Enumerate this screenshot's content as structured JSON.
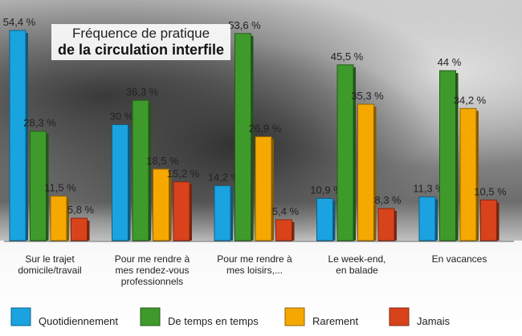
{
  "chart_data": {
    "type": "bar",
    "title_line1": "Fréquence de pratique",
    "title_line2": "de la circulation interfile",
    "categories": [
      [
        "Sur le trajet",
        "domicile/travail"
      ],
      [
        "Pour me rendre à",
        "mes rendez-vous",
        "professionnels"
      ],
      [
        "Pour me rendre à",
        "mes loisirs,..."
      ],
      [
        "Le week-end,",
        "en balade"
      ],
      [
        "En vacances"
      ]
    ],
    "series": [
      {
        "name": "Quotidiennement",
        "color": "#1aa3e0",
        "values": [
          54.4,
          30,
          14.2,
          10.9,
          11.3
        ],
        "labels": [
          "54,4 %",
          "30 %",
          "14,2 %",
          "10,9 %",
          "11,3 %"
        ]
      },
      {
        "name": "De temps en temps",
        "color": "#3f9a2c",
        "values": [
          28.3,
          36.3,
          53.6,
          45.5,
          44
        ],
        "labels": [
          "28,3 %",
          "36,3 %",
          "53,6 %",
          "45,5 %",
          "44 %"
        ]
      },
      {
        "name": "Rarement",
        "color": "#f5a800",
        "values": [
          11.5,
          18.5,
          26.9,
          35.3,
          34.2
        ],
        "labels": [
          "11,5 %",
          "18,5 %",
          "26,9 %",
          "35,3 %",
          "34,2 %"
        ]
      },
      {
        "name": "Jamais",
        "color": "#d8431c",
        "values": [
          5.8,
          15.2,
          5.4,
          8.3,
          10.5
        ],
        "labels": [
          "5,8 %",
          "15,2 %",
          "5,4 %",
          "8,3 %",
          "10,5 %"
        ]
      }
    ],
    "ylim": [
      0,
      60
    ],
    "legend": "bottom"
  }
}
